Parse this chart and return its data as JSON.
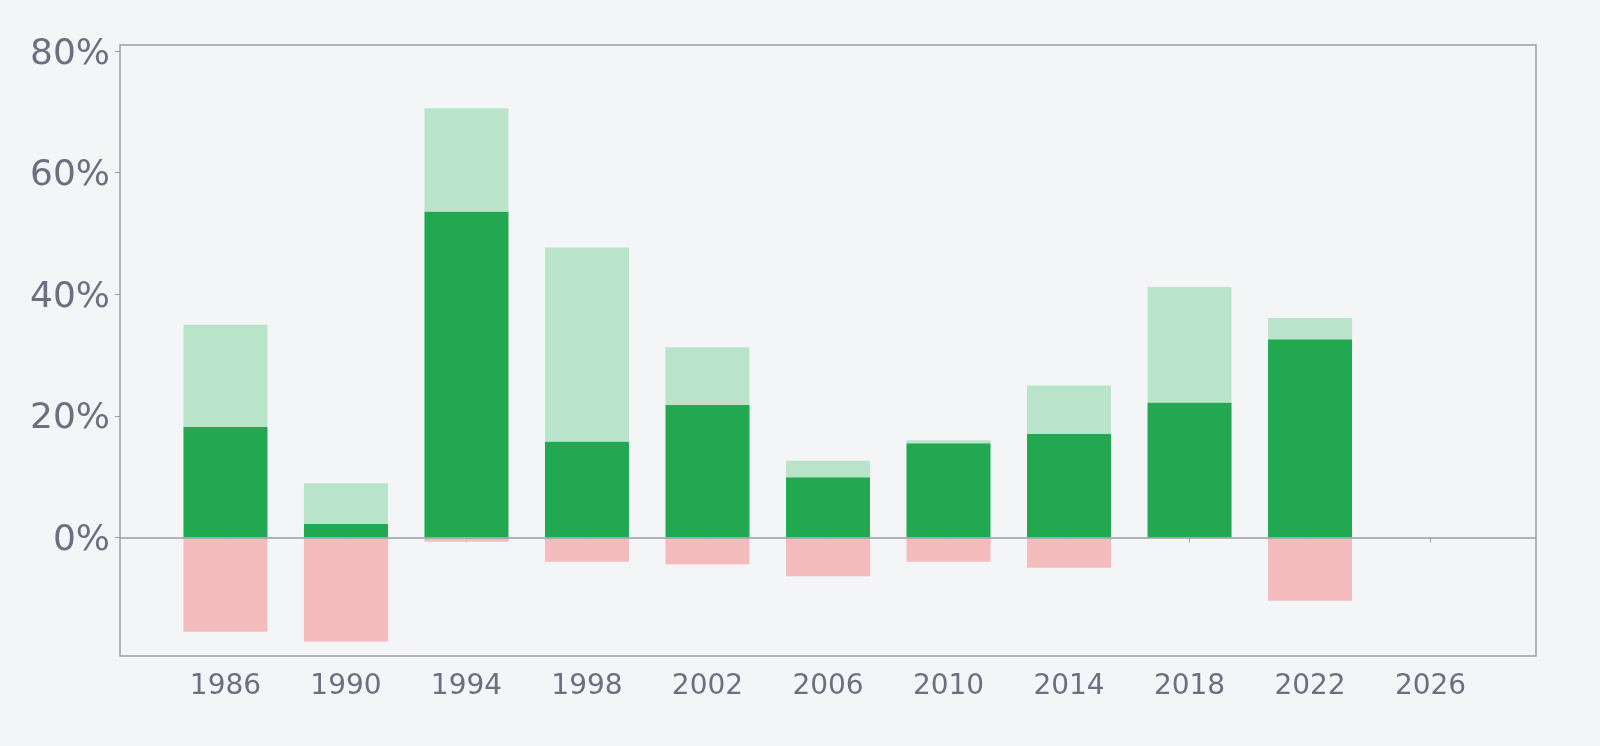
{
  "chart_data": {
    "type": "bar",
    "stacked": true,
    "x": [
      1986,
      1990,
      1994,
      1998,
      2002,
      2006,
      2010,
      2014,
      2018,
      2022
    ],
    "series": [
      {
        "color": "#22a851",
        "values": [
          18.2,
          2.2,
          53.6,
          15.8,
          21.8,
          9.9,
          15.5,
          17.0,
          22.2,
          32.6
        ]
      },
      {
        "color": "#b9e4c9",
        "values": [
          16.8,
          6.7,
          17.0,
          31.9,
          9.5,
          2.7,
          0.5,
          8.0,
          19.0,
          3.5
        ]
      },
      {
        "color": "#f4bcbc",
        "values": [
          -15.5,
          -17.1,
          -0.7,
          -4.0,
          -4.4,
          -6.4,
          -4.0,
          -5.0,
          null,
          -10.4
        ]
      }
    ],
    "xlim": [
      1982.5,
      2029.5
    ],
    "xticks": [
      1986,
      1990,
      1994,
      1998,
      2002,
      2006,
      2010,
      2014,
      2018,
      2022,
      2026
    ],
    "ylim": [
      -19.5,
      81
    ],
    "yticks": [
      {
        "value": 0,
        "label": "0%"
      },
      {
        "value": 20,
        "label": "20%"
      },
      {
        "value": 40,
        "label": "40%"
      },
      {
        "value": 60,
        "label": "60%"
      },
      {
        "value": 80,
        "label": "80%"
      }
    ],
    "ref_lines": [
      {
        "axis": "y",
        "value": 0,
        "color": "#9a9cab"
      }
    ],
    "grid": false
  }
}
